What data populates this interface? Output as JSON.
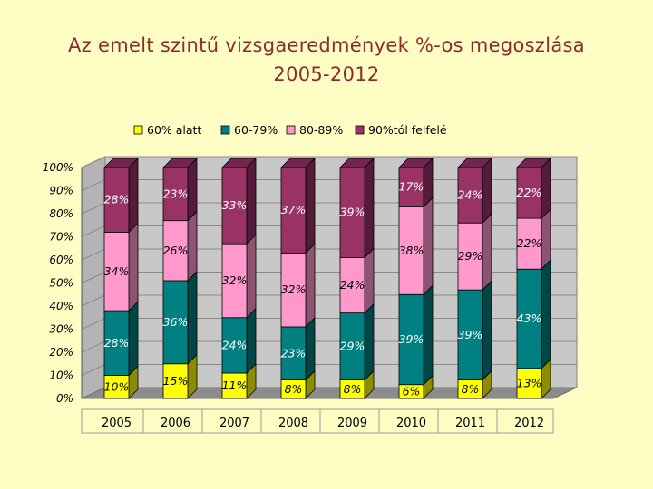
{
  "title_line1": "Az emelt szintű vizsgaeredmények %-os megoszlása",
  "title_line2": "2005-2012",
  "chart_data": {
    "type": "bar",
    "stacked": true,
    "percent": true,
    "title": "Az emelt szintű vizsgaeredmények %-os megoszlása 2005-2012",
    "categories": [
      "2005",
      "2006",
      "2007",
      "2008",
      "2009",
      "2010",
      "2011",
      "2012"
    ],
    "series": [
      {
        "name": "60% alatt",
        "color": "#ffff00",
        "values": [
          10,
          15,
          11,
          8,
          8,
          6,
          8,
          13
        ]
      },
      {
        "name": "60-79%",
        "color": "#008080",
        "values": [
          28,
          36,
          24,
          23,
          29,
          39,
          39,
          43
        ]
      },
      {
        "name": "80-89%",
        "color": "#ff99cc",
        "values": [
          34,
          26,
          32,
          32,
          24,
          38,
          29,
          22
        ]
      },
      {
        "name": "90%tól felfelé",
        "color": "#993366",
        "values": [
          28,
          23,
          33,
          37,
          39,
          17,
          24,
          22
        ]
      }
    ],
    "yticks": [
      "0%",
      "10%",
      "20%",
      "30%",
      "40%",
      "50%",
      "60%",
      "70%",
      "80%",
      "90%",
      "100%"
    ],
    "ylim": [
      0,
      100
    ],
    "legend_position": "top",
    "grid": true
  }
}
